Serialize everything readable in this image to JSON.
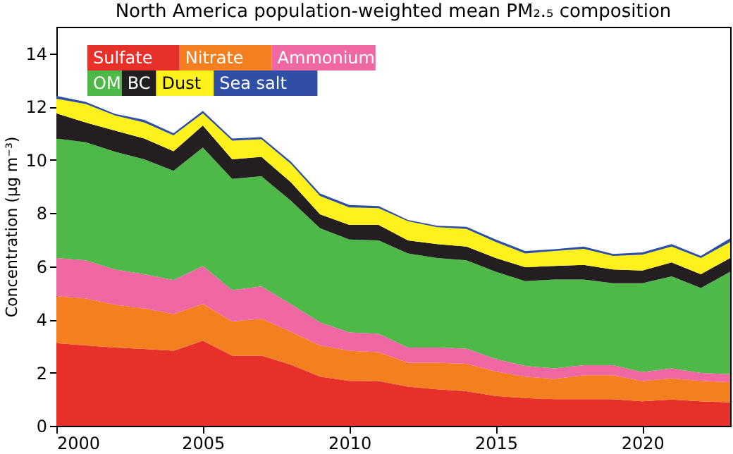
{
  "chart_data": {
    "type": "area",
    "stacked": true,
    "title": "North America population-weighted mean PM₂.₅ composition",
    "ylabel": "Concentration (μg m⁻³)",
    "x": [
      2000,
      2001,
      2002,
      2003,
      2004,
      2005,
      2006,
      2007,
      2008,
      2009,
      2010,
      2011,
      2012,
      2013,
      2014,
      2015,
      2016,
      2017,
      2018,
      2019,
      2020,
      2021,
      2022,
      2023
    ],
    "xlim": [
      2000,
      2023
    ],
    "xticks": [
      2000,
      2005,
      2010,
      2015,
      2020
    ],
    "ylim": [
      0,
      15
    ],
    "yticks": [
      0,
      2,
      4,
      6,
      8,
      10,
      12,
      14
    ],
    "grid": false,
    "legend": "top left",
    "series": [
      {
        "name": "Sulfate",
        "color": "#e8302a",
        "values": [
          3.11,
          3.02,
          2.94,
          2.89,
          2.82,
          3.2,
          2.64,
          2.64,
          2.3,
          1.85,
          1.69,
          1.68,
          1.47,
          1.37,
          1.3,
          1.12,
          1.04,
          1.0,
          1.0,
          1.0,
          0.92,
          0.99,
          0.92,
          0.88
        ]
      },
      {
        "name": "Nitrate",
        "color": "#f47f20",
        "values": [
          1.76,
          1.77,
          1.61,
          1.52,
          1.38,
          1.38,
          1.28,
          1.39,
          1.24,
          1.17,
          1.13,
          1.09,
          0.9,
          1.0,
          1.03,
          0.92,
          0.81,
          0.76,
          0.9,
          0.9,
          0.76,
          0.79,
          0.77,
          0.76
        ]
      },
      {
        "name": "Ammonium",
        "color": "#ef67a3",
        "values": [
          1.44,
          1.43,
          1.33,
          1.29,
          1.28,
          1.43,
          1.18,
          1.21,
          1.04,
          0.87,
          0.69,
          0.69,
          0.57,
          0.57,
          0.57,
          0.47,
          0.4,
          0.4,
          0.38,
          0.38,
          0.34,
          0.38,
          0.3,
          0.3
        ]
      },
      {
        "name": "OM",
        "color": "#4eb848",
        "values": [
          4.49,
          4.44,
          4.42,
          4.32,
          4.11,
          4.45,
          4.18,
          4.14,
          3.89,
          3.54,
          3.49,
          3.51,
          3.54,
          3.37,
          3.32,
          3.28,
          3.19,
          3.34,
          3.22,
          3.08,
          3.34,
          3.46,
          3.19,
          3.85
        ]
      },
      {
        "name": "BC",
        "color": "#231f20",
        "values": [
          0.95,
          0.74,
          0.8,
          0.78,
          0.73,
          0.83,
          0.74,
          0.73,
          0.69,
          0.52,
          0.55,
          0.58,
          0.49,
          0.52,
          0.52,
          0.52,
          0.52,
          0.51,
          0.55,
          0.52,
          0.48,
          0.52,
          0.52,
          0.52
        ]
      },
      {
        "name": "Dust",
        "color": "#fff21c",
        "values": [
          0.55,
          0.7,
          0.57,
          0.6,
          0.6,
          0.46,
          0.7,
          0.66,
          0.69,
          0.69,
          0.66,
          0.63,
          0.72,
          0.64,
          0.66,
          0.6,
          0.52,
          0.56,
          0.6,
          0.51,
          0.59,
          0.6,
          0.61,
          0.6
        ]
      },
      {
        "name": "Sea salt",
        "color": "#2e4fa3",
        "values": [
          0.1,
          0.08,
          0.06,
          0.1,
          0.08,
          0.09,
          0.08,
          0.08,
          0.09,
          0.09,
          0.09,
          0.08,
          0.05,
          0.05,
          0.08,
          0.09,
          0.09,
          0.07,
          0.09,
          0.07,
          0.09,
          0.09,
          0.08,
          0.14
        ]
      }
    ]
  }
}
